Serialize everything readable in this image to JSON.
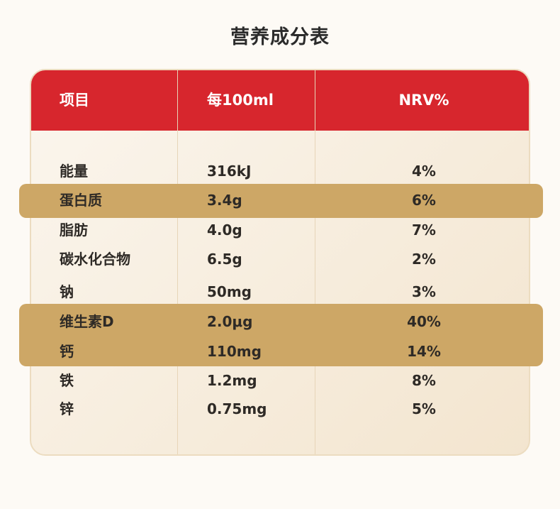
{
  "title": "营养成分表",
  "header": {
    "item": "项目",
    "per100ml": "每100ml",
    "nrv": "NRV%"
  },
  "rows": [
    {
      "item": "能量",
      "amount": "316kJ",
      "nrv": "4%"
    },
    {
      "item": "蛋白质",
      "amount": "3.4g",
      "nrv": "6%"
    },
    {
      "item": "脂肪",
      "amount": "4.0g",
      "nrv": "7%"
    },
    {
      "item": "碳水化合物",
      "amount": "6.5g",
      "nrv": "2%"
    },
    {
      "item": "钠",
      "amount": "50mg",
      "nrv": "3%"
    },
    {
      "item": "维生素D",
      "amount": "2.0μg",
      "nrv": "40%"
    },
    {
      "item": "钙",
      "amount": "110mg",
      "nrv": "14%"
    },
    {
      "item": "铁",
      "amount": "1.2mg",
      "nrv": "8%"
    },
    {
      "item": "锌",
      "amount": "0.75mg",
      "nrv": "5%"
    }
  ],
  "colors": {
    "header": "#d7262d",
    "highlight": "#cda766",
    "card": "#f7eddd"
  }
}
